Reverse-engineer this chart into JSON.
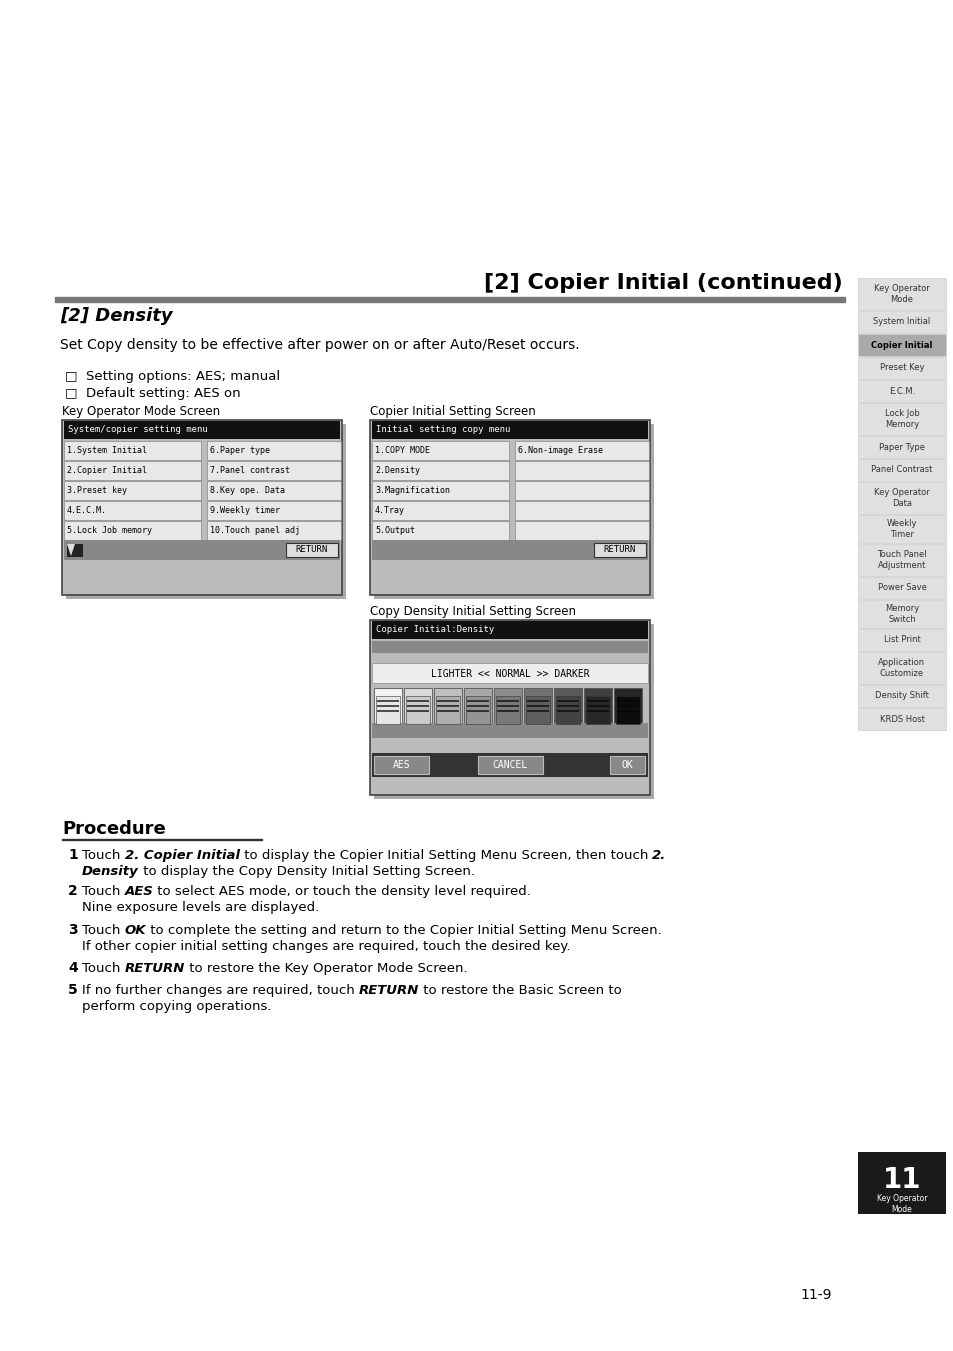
{
  "bg_color": "#ffffff",
  "page_title": "[2] Copier Initial (continued)",
  "section_title": "[2] Density",
  "section_desc": "Set Copy density to be effective after power on or after Auto/Reset occurs.",
  "bullet1": "□  Setting options: AES; manual",
  "bullet2": "□  Default setting: AES on",
  "screen1_label": "Key Operator Mode Screen",
  "screen1_title": "System/copier setting menu",
  "screen1_rows_col1": [
    "1.System Initial",
    "2.Copier Initial",
    "3.Preset key",
    "4.E.C.M.",
    "5.Lock Job memory"
  ],
  "screen1_rows_col2": [
    "6.Paper type",
    "7.Panel contrast",
    "8.Key ope. Data",
    "9.Weekly timer",
    "10.Touch panel adj"
  ],
  "screen1_footer": "RETURN",
  "screen2_label": "Copier Initial Setting Screen",
  "screen2_title": "Initial setting copy menu",
  "screen2_rows_col1": [
    "1.COPY MODE",
    "2.Density",
    "3.Magnification",
    "4.Tray",
    "5.Output"
  ],
  "screen2_rows_col2": [
    "6.Non-image Erase",
    "",
    "",
    "",
    ""
  ],
  "screen2_footer": "RETURN",
  "screen3_label": "Copy Density Initial Setting Screen",
  "screen3_title": "Copier Initial:Density",
  "screen3_density_text": "LIGHTER << NORMAL >> DARKER",
  "screen3_buttons": [
    "AES",
    "CANCEL",
    "OK"
  ],
  "procedure_title": "Procedure",
  "sidebar_items": [
    "Key Operator\nMode",
    "System Initial",
    "Copier Initial",
    "Preset Key",
    "E.C.M.",
    "Lock Job\nMemory",
    "Paper Type",
    "Panel Contrast",
    "Key Operator\nData",
    "Weekly\nTimer",
    "Touch Panel\nAdjustment",
    "Power Save",
    "Memory\nSwitch",
    "List Print",
    "Application\nCustomize",
    "Density Shift",
    "KRDS Host"
  ],
  "sidebar_active": "Copier Initial",
  "page_number": "11-9"
}
